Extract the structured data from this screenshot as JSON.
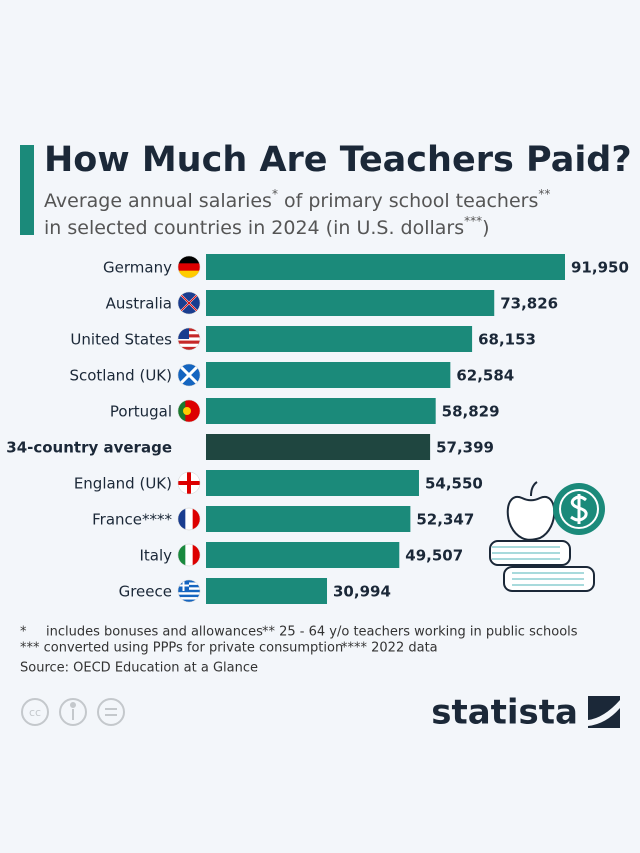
{
  "chart_data": {
    "type": "bar",
    "orientation": "horizontal",
    "title": "How Much Are Teachers Paid?",
    "subtitle": [
      [
        "Average annual salaries",
        "*",
        " of primary school teachers",
        "**"
      ],
      [
        "in selected countries in 2024 (in U.S. dollars",
        "***",
        ")"
      ]
    ],
    "categories": [
      "Germany",
      "Australia",
      "United States",
      "Scotland (UK)",
      "Portugal",
      "34-country average",
      "England (UK)",
      "France****",
      "Italy",
      "Greece"
    ],
    "values": [
      91950,
      73826,
      68153,
      62584,
      58829,
      57399,
      54550,
      52347,
      49507,
      30994
    ],
    "value_labels": [
      "91,950",
      "73,826",
      "68,153",
      "62,584",
      "58,829",
      "57,399",
      "54,550",
      "52,347",
      "49,507",
      "30,994"
    ],
    "colors": [
      "#1b8a7a",
      "#1b8a7a",
      "#1b8a7a",
      "#1b8a7a",
      "#1b8a7a",
      "#1f4640",
      "#1b8a7a",
      "#1b8a7a",
      "#1b8a7a",
      "#1b8a7a"
    ],
    "notes": [
      [
        "*",
        "includes bonuses and allowances",
        "** 25 - 64 y/o teachers working in public schools"
      ],
      [
        "*** converted using PPPs for private consumption",
        "**** 2022 data"
      ]
    ],
    "source": "Source: OECD Education at a Glance",
    "brand": "statista"
  }
}
